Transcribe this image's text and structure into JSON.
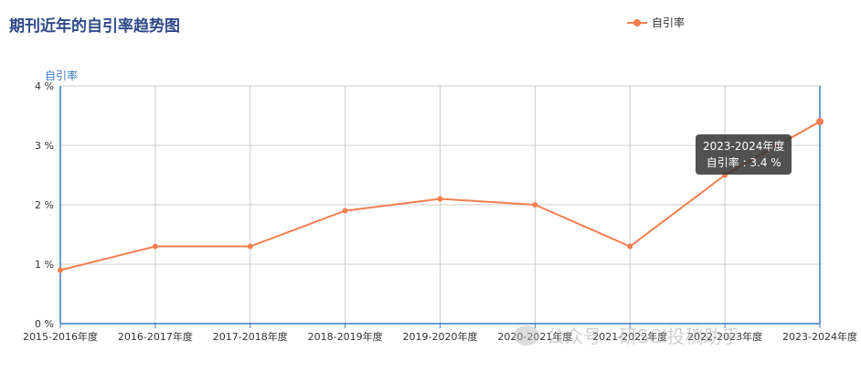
{
  "page": {
    "title": "期刊近年的自引率趋势图"
  },
  "watermark": {
    "text": "公众号 · 研SCI投稿助手"
  },
  "tooltip": {
    "category": "2023-2024年度",
    "text": "自引率 : 3.4 %"
  },
  "colors": {
    "series": "#f47e4f",
    "axis": "#3a7bbf",
    "grid": "#cccccc",
    "title": "#2f4a8a"
  },
  "chart_data": {
    "type": "line",
    "title": "期刊近年的自引率趋势图",
    "ylabel": "自引率",
    "xlabel": "",
    "categories": [
      "2015-2016年度",
      "2016-2017年度",
      "2017-2018年度",
      "2018-2019年度",
      "2019-2020年度",
      "2020-2021年度",
      "2021-2022年度",
      "2022-2023年度",
      "2023-2024年度"
    ],
    "series": [
      {
        "name": "自引率",
        "values": [
          0.9,
          1.3,
          1.3,
          1.9,
          2.1,
          2.0,
          1.3,
          2.5,
          3.4
        ]
      }
    ],
    "ylim": [
      0,
      4
    ],
    "yticks": [
      0,
      1,
      2,
      3,
      4
    ],
    "ytick_labels": [
      "0 %",
      "1 %",
      "2 %",
      "3 %",
      "4 %"
    ],
    "grid": true,
    "legend": "top-right"
  }
}
